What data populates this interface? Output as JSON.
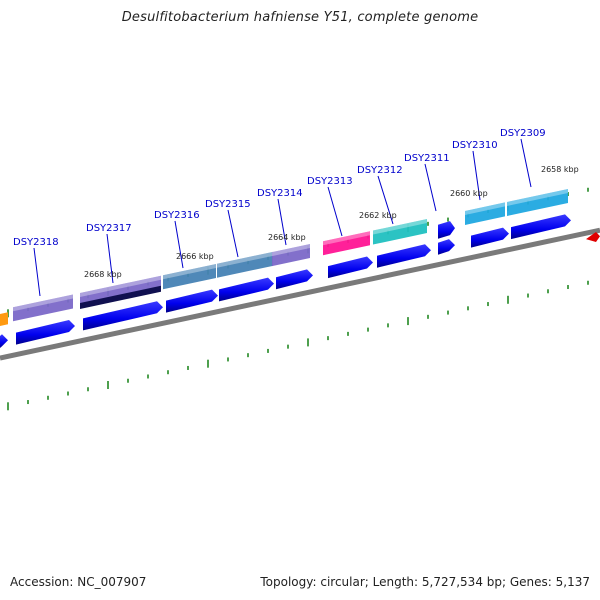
{
  "title": "Desulfitobacterium hafniense Y51, complete genome",
  "footer": {
    "accession": "Accession: NC_007907",
    "topology": "Topology: circular; Length: 5,727,534 bp; Genes: 5,137"
  },
  "colors": {
    "backbone": "#8a8a8a",
    "cds": "#0000ee",
    "tick": "#228822",
    "label": "#0000cc"
  },
  "kbp_labels": [
    "2658 kbp",
    "2660 kbp",
    "2662 kbp",
    "2664 kbp",
    "2666 kbp",
    "2668 kbp"
  ],
  "genes": [
    {
      "id": "DSY2318",
      "color": "#7b68c8"
    },
    {
      "id": "DSY2317",
      "color": "#7b68c8"
    },
    {
      "id": "DSY2316",
      "color": "#4682b4"
    },
    {
      "id": "DSY2315",
      "color": "#4682b4"
    },
    {
      "id": "DSY2314",
      "color": "#7b68c8"
    },
    {
      "id": "DSY2313",
      "color": "#ff1493"
    },
    {
      "id": "DSY2312",
      "color": "#20c0c0"
    },
    {
      "id": "DSY2311",
      "color": "#0000ee"
    },
    {
      "id": "DSY2310",
      "color": "#20a8e0"
    },
    {
      "id": "DSY2309",
      "color": "#20a8e0"
    }
  ]
}
